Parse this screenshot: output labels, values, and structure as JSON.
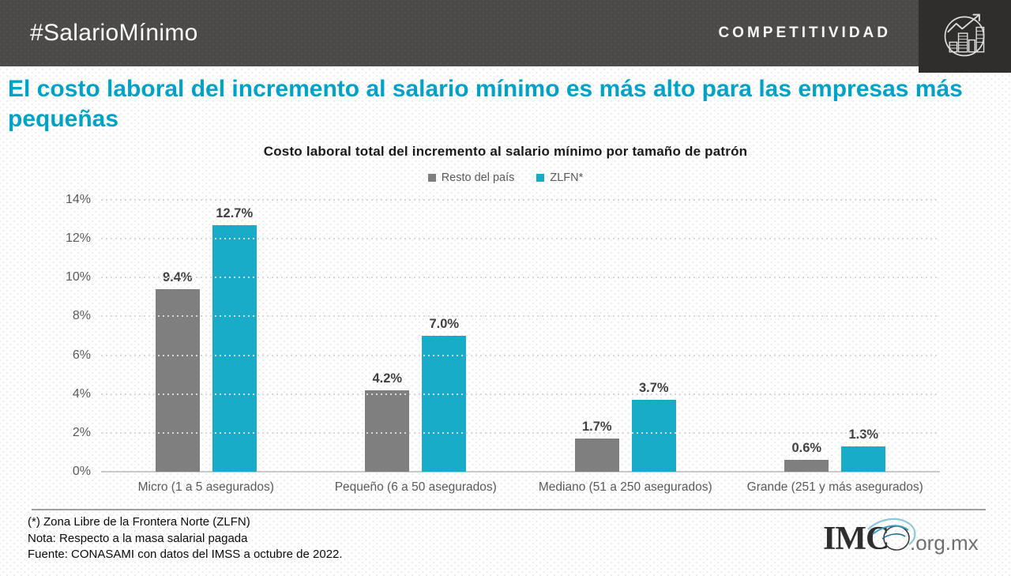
{
  "header": {
    "hashtag": "#SalarioMínimo",
    "brand": "COMPETITIVIDAD",
    "logo_icon": "city-growth-icon"
  },
  "title": "El costo laboral del incremento al salario mínimo es más alto para las empresas más pequeñas",
  "chart_data": {
    "type": "bar",
    "title": "Costo laboral total del incremento al salario mínimo por tamaño de patrón",
    "categories": [
      "Micro (1 a 5 asegurados)",
      "Pequeño (6 a 50 asegurados)",
      "Mediano (51 a 250 asegurados)",
      "Grande (251 y más asegurados)"
    ],
    "series": [
      {
        "name": "Resto del país",
        "color": "#7F7F7F",
        "values": [
          9.4,
          4.2,
          1.7,
          0.6
        ]
      },
      {
        "name": "ZLFN*",
        "color": "#18ACC8",
        "values": [
          12.7,
          7.0,
          3.7,
          1.3
        ]
      }
    ],
    "xlabel": "",
    "ylabel": "",
    "ylim": [
      0,
      14
    ],
    "ytick_step": 2,
    "ytick_suffix": "%",
    "grid": "horizontal-dotted",
    "legend_position": "top",
    "value_labels": "one-decimal-percent"
  },
  "footnotes": [
    "(*) Zona Libre de la Frontera Norte (ZLFN)",
    "Nota: Respecto a la masa salarial pagada",
    "Fuente: CONASAMI con datos del IMSS a octubre de 2022."
  ],
  "footer_logo": {
    "text": "IMC",
    "suffix": ".org.mx",
    "icon": "imco-swoosh-o-icon"
  },
  "colors": {
    "header_bg": "#4B4A49",
    "logo_square_bg": "#2F2E2D",
    "title_cyan": "#00A3C8",
    "bar_gray": "#7F7F7F",
    "bar_cyan": "#18ACC8",
    "axis_text": "#595959",
    "value_label": "#3F3F3F"
  }
}
